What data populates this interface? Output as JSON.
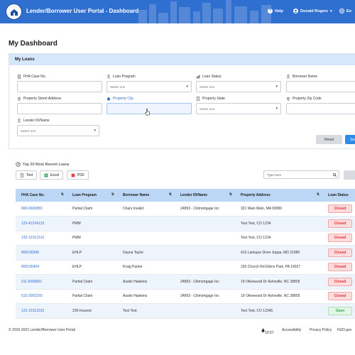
{
  "header": {
    "title": "Lender/Borrower User Portal - Dashboard",
    "help_label": "Help",
    "user_name": "Donald Rogers",
    "lang_label": "En"
  },
  "page": {
    "title": "My Dashboard"
  },
  "loans_card": {
    "title": "My Loans",
    "fields": {
      "fha_case_no": {
        "label": "FHA Case No.",
        "value": ""
      },
      "loan_program": {
        "label": "Loan Program",
        "value": "Select one"
      },
      "loan_status": {
        "label": "Loan Status",
        "value": "Select one"
      },
      "borrower_name": {
        "label": "Borrower Name",
        "value": ""
      },
      "property_street": {
        "label": "Property Street Address",
        "value": ""
      },
      "property_city": {
        "label": "Property City",
        "value": ""
      },
      "property_state": {
        "label": "Property State",
        "value": "Select one"
      },
      "property_zip": {
        "label": "Property Zip Code",
        "value": ""
      },
      "lender_id": {
        "label": "Lender ID/Name",
        "value": "Select one"
      }
    },
    "reset_label": "Reset",
    "search_label": "Search"
  },
  "recent": {
    "title": "Top 20 Most Recent Loans",
    "export_text": "Text",
    "export_excel": "Excel",
    "export_pdf": "PDF",
    "search_placeholder": "Type here"
  },
  "table": {
    "columns": [
      "FHA Case No.",
      "Loan Program",
      "Borrower Name",
      "Lender ID/Name",
      "Property Address",
      "Loan Status"
    ],
    "rows": [
      [
        "666-6665883",
        "Partial Claim",
        "Chars Invalid",
        "24893 - Citimortgage Inc",
        "321 Main Main, MA 99999",
        "Closed"
      ],
      [
        "123-41234123",
        "PMM",
        "",
        "",
        "Test Test, CO 1234",
        "Closed"
      ],
      [
        "132-12312312",
        "PMM",
        "",
        "",
        "Test Test, CO 1234",
        "Closed"
      ],
      [
        "800106996",
        "EHLP",
        "Dayna Taylor",
        "",
        "413 Larkspur Drive Joppa, MD 21085",
        "Closed"
      ],
      [
        "800105464",
        "EHLP",
        "Kraig Parker",
        "",
        "233 Church Rd Elkins Park, PA 19027",
        "Closed"
      ],
      [
        "011-5068061",
        "Partial Claim",
        "Austin Hawkins",
        "24893 - Citimortgage Inc",
        "19 Olivewood Dr Asheville, NC 28805",
        "Closed"
      ],
      [
        "512-2002203",
        "Partial Claim",
        "Austin Hawkins",
        "24893 - Citimortgage Inc",
        "19 Olivewood Dr Asheville, NC 28805",
        "Closed"
      ],
      [
        "123-12312333",
        "235-Insured",
        "Test Test",
        "",
        "Test Test, CO 12345",
        "Open"
      ]
    ]
  },
  "footer": {
    "copyright": "© 2010-2021 Lender/Borrower User Portal",
    "time": "19:57",
    "accessibility": "Accessibility",
    "privacy": "Privacy Policy",
    "hud": "HUD.gov"
  },
  "colors": {
    "header_bg": "#2f6fd0",
    "card_head_bg": "#d7e7fb",
    "table_head_bg": "#bcd6f6",
    "closed": "#d93636",
    "open": "#2eac4f"
  }
}
